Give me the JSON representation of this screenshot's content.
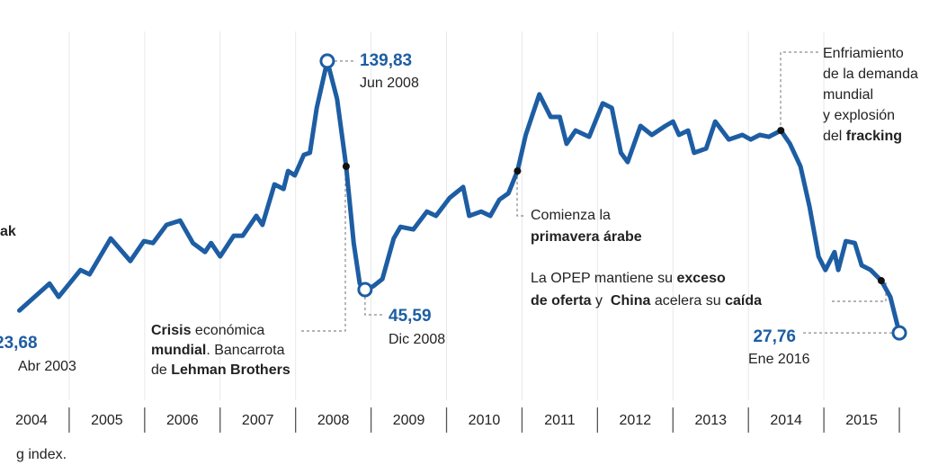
{
  "chart_data": {
    "type": "line",
    "xlim": [
      2004,
      2016.5
    ],
    "ylim": [
      0,
      165
    ],
    "xticks": [
      2004,
      2005,
      2006,
      2007,
      2008,
      2009,
      2010,
      2011,
      2012,
      2013,
      2014,
      2015
    ],
    "grid": true,
    "series": [
      {
        "color": "#1d5da3",
        "x": [
          2004.34,
          2004.74,
          2004.86,
          2005.15,
          2005.27,
          2005.55,
          2005.81,
          2005.99,
          2006.11,
          2006.29,
          2006.47,
          2006.64,
          2006.8,
          2006.88,
          2007.0,
          2007.18,
          2007.3,
          2007.48,
          2007.56,
          2007.72,
          2007.84,
          2007.9,
          2007.99,
          2008.11,
          2008.19,
          2008.28,
          2008.42,
          2008.55,
          2008.67,
          2008.77,
          2008.85,
          2008.92,
          2009.03,
          2009.15,
          2009.3,
          2009.39,
          2009.56,
          2009.74,
          2009.86,
          2010.04,
          2010.22,
          2010.3,
          2010.46,
          2010.58,
          2010.7,
          2010.82,
          2010.94,
          2011.05,
          2011.23,
          2011.38,
          2011.5,
          2011.59,
          2011.71,
          2011.89,
          2012.07,
          2012.19,
          2012.31,
          2012.4,
          2012.57,
          2012.72,
          2012.9,
          2013.0,
          2013.08,
          2013.2,
          2013.28,
          2013.44,
          2013.56,
          2013.74,
          2013.92,
          2014.03,
          2014.15,
          2014.27,
          2014.43,
          2014.55,
          2014.69,
          2014.81,
          2014.93,
          2015.02,
          2015.14,
          2015.19,
          2015.29,
          2015.41,
          2015.5,
          2015.62,
          2015.76,
          2015.88,
          2016.0
        ],
        "values": [
          37,
          48.1,
          42.6,
          53.7,
          51.9,
          66.7,
          57.4,
          65.6,
          64.8,
          72.3,
          74.1,
          64.8,
          61.1,
          64.8,
          59.3,
          67.8,
          67.8,
          76,
          72.3,
          89,
          87.1,
          94.5,
          92.7,
          101.2,
          102,
          120.5,
          139.83,
          124.2,
          96.4,
          64.8,
          48.1,
          45.59,
          47,
          50,
          66.7,
          71.5,
          70.4,
          77.8,
          76,
          83.4,
          87.9,
          76,
          77.8,
          76,
          82.7,
          85.3,
          94.5,
          109.4,
          126.1,
          116.8,
          116.8,
          105.7,
          111.2,
          108.6,
          122.4,
          120.5,
          102,
          98.2,
          113.1,
          109.4,
          113.1,
          114.9,
          109.4,
          111.2,
          102,
          103.8,
          114.9,
          107.5,
          109.4,
          107.5,
          109.4,
          108.6,
          111.2,
          105.7,
          96.4,
          79.7,
          59.3,
          53.7,
          61.1,
          53.7,
          65.6,
          64.8,
          55.6,
          53.7,
          49.3,
          42.6,
          27.76
        ]
      }
    ],
    "highlights": [
      {
        "x": 2003.25,
        "value": 23.68,
        "value_label": "23,68",
        "date": "Abr 2003"
      },
      {
        "x": 2008.42,
        "value": 139.83,
        "value_label": "139,83",
        "date": "Jun 2008"
      },
      {
        "x": 2008.92,
        "value": 45.59,
        "value_label": "45,59",
        "date": "Dic 2008"
      },
      {
        "x": 2016.0,
        "value": 27.76,
        "value_label": "27,76",
        "date": "Ene 2016"
      }
    ],
    "annotations": [
      {
        "x": 2008.67,
        "lines": [
          [
            {
              "text": "Crisis",
              "bold": true
            },
            {
              "text": " económica"
            }
          ],
          [
            {
              "text": "mundial",
              "bold": true
            },
            {
              "text": ". Bancarrota"
            }
          ],
          [
            {
              "text": "de "
            },
            {
              "text": "Lehman Brothers",
              "bold": true
            }
          ]
        ]
      },
      {
        "x": 2010.94,
        "lines": [
          [
            {
              "text": "Comienza la"
            }
          ],
          [
            {
              "text": "primavera árabe",
              "bold": true
            }
          ]
        ]
      },
      {
        "x": 2015.76,
        "lines": [
          [
            {
              "text": "La OPEP mantiene su "
            },
            {
              "text": "exceso",
              "bold": true
            }
          ],
          [
            {
              "text": "de oferta",
              "bold": true
            },
            {
              "text": " y  "
            },
            {
              "text": "China",
              "bold": true
            },
            {
              "text": " acelera su "
            },
            {
              "text": "caída",
              "bold": true
            }
          ]
        ]
      },
      {
        "x": 2014.43,
        "lines": [
          [
            {
              "text": "Enfriamiento"
            }
          ],
          [
            {
              "text": "de la demanda"
            }
          ],
          [
            {
              "text": "mundial"
            }
          ],
          [
            {
              "text": "y explosión"
            }
          ],
          [
            {
              "text": "del "
            },
            {
              "text": "fracking",
              "bold": true
            }
          ]
        ]
      }
    ],
    "edge_texts": {
      "left": "ak",
      "bottom": "g index."
    }
  }
}
